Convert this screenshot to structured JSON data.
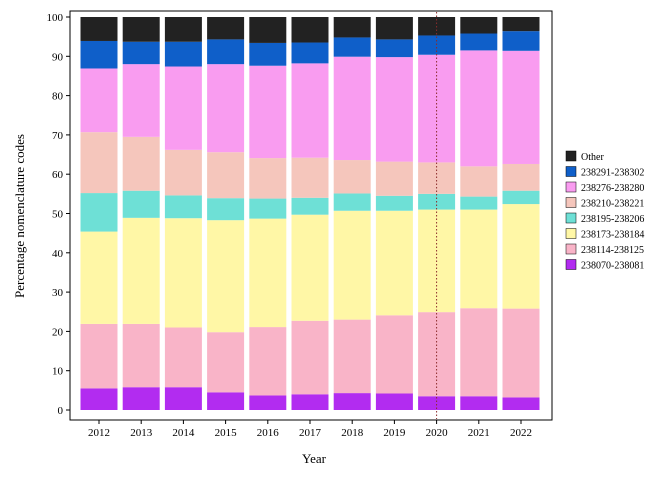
{
  "chart_data": {
    "type": "bar",
    "stacked": true,
    "xlabel": "Year",
    "ylabel": "Percentage nomenclature codes",
    "ylim": [
      0,
      100
    ],
    "yticks": [
      0,
      10,
      20,
      30,
      40,
      50,
      60,
      70,
      80,
      90,
      100
    ],
    "categories": [
      "2012",
      "2013",
      "2014",
      "2015",
      "2016",
      "2017",
      "2018",
      "2019",
      "2020",
      "2021",
      "2022"
    ],
    "legend_position": "right",
    "reference_line": {
      "x": "2020",
      "style": "dotted",
      "color": "#8b2b2b"
    },
    "series": [
      {
        "name": "238070-238081",
        "color": "#b22cf0",
        "values": [
          5.5,
          5.8,
          5.8,
          4.5,
          3.7,
          4.0,
          4.3,
          4.2,
          3.5,
          3.5,
          3.2
        ]
      },
      {
        "name": "238114-238125",
        "color": "#f9b4c8",
        "values": [
          16.4,
          16.1,
          15.2,
          15.3,
          17.4,
          18.7,
          18.7,
          19.9,
          21.4,
          22.4,
          22.6
        ]
      },
      {
        "name": "238173-238184",
        "color": "#fff7a6",
        "values": [
          23.5,
          27.0,
          27.8,
          28.5,
          27.6,
          27.0,
          27.7,
          26.6,
          26.1,
          25.1,
          26.6
        ]
      },
      {
        "name": "238195-238206",
        "color": "#6ee0d6",
        "values": [
          9.8,
          6.9,
          5.8,
          5.6,
          5.1,
          4.3,
          4.4,
          3.8,
          4.0,
          3.3,
          3.4
        ]
      },
      {
        "name": "238210-238221",
        "color": "#f5c6bc",
        "values": [
          15.5,
          13.7,
          11.6,
          11.7,
          10.3,
          10.2,
          8.5,
          8.7,
          8.0,
          7.7,
          6.8
        ]
      },
      {
        "name": "238276-238280",
        "color": "#f99cf0",
        "values": [
          16.2,
          18.5,
          21.2,
          22.4,
          23.5,
          24.0,
          26.3,
          26.6,
          27.4,
          29.5,
          28.8
        ]
      },
      {
        "name": "238291-238302",
        "color": "#0f5fc9",
        "values": [
          7.0,
          5.7,
          6.3,
          6.3,
          5.8,
          5.3,
          4.9,
          4.5,
          4.9,
          4.3,
          5.0
        ]
      },
      {
        "name": "Other",
        "color": "#222222",
        "values": [
          6.1,
          6.3,
          6.3,
          5.7,
          6.6,
          6.5,
          5.2,
          5.7,
          4.7,
          4.2,
          3.6
        ]
      }
    ]
  }
}
